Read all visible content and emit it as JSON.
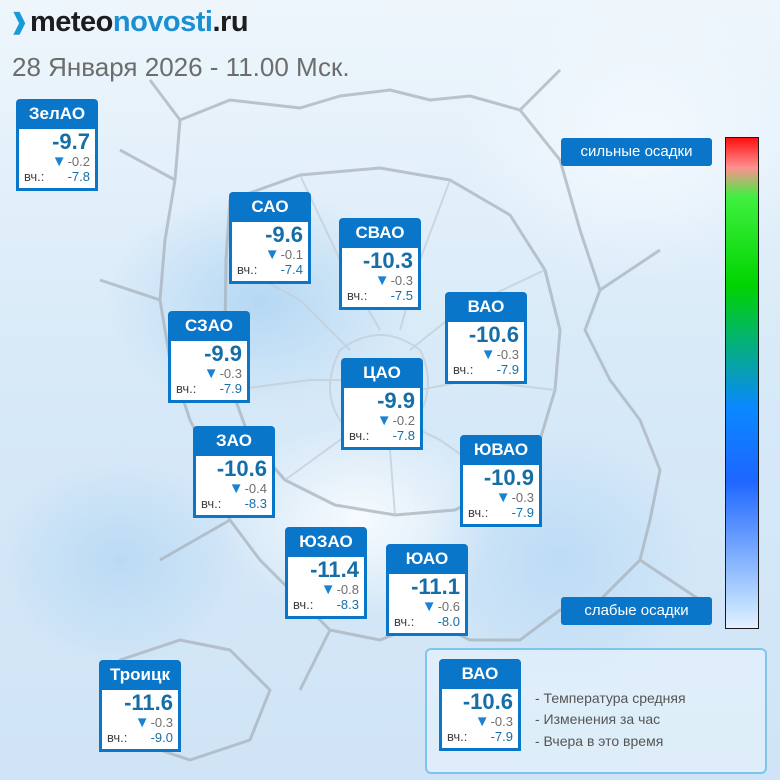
{
  "brand": {
    "part1": "meteo",
    "part2": "novosti",
    "part3": ".ru"
  },
  "date": "28 Января 2026 - 11.00 Мск.",
  "districts": {
    "zelao": {
      "name": "ЗелАО",
      "temp": "-9.7",
      "change": "-0.2",
      "yesterday": "-7.8"
    },
    "sao": {
      "name": "САО",
      "temp": "-9.6",
      "change": "-0.1",
      "yesterday": "-7.4"
    },
    "svao": {
      "name": "СВАО",
      "temp": "-10.3",
      "change": "-0.3",
      "yesterday": "-7.5"
    },
    "vao": {
      "name": "ВАО",
      "temp": "-10.6",
      "change": "-0.3",
      "yesterday": "-7.9"
    },
    "szao": {
      "name": "СЗАО",
      "temp": "-9.9",
      "change": "-0.3",
      "yesterday": "-7.9"
    },
    "tsao": {
      "name": "ЦАО",
      "temp": "-9.9",
      "change": "-0.2",
      "yesterday": "-7.8"
    },
    "zao": {
      "name": "ЗАО",
      "temp": "-10.6",
      "change": "-0.4",
      "yesterday": "-8.3"
    },
    "yuvao": {
      "name": "ЮВАО",
      "temp": "-10.9",
      "change": "-0.3",
      "yesterday": "-7.9"
    },
    "yuzao": {
      "name": "ЮЗАО",
      "temp": "-11.4",
      "change": "-0.8",
      "yesterday": "-8.3"
    },
    "yuao": {
      "name": "ЮАО",
      "temp": "-11.1",
      "change": "-0.6",
      "yesterday": "-8.0"
    },
    "troitsk": {
      "name": "Троицк",
      "temp": "-11.6",
      "change": "-0.3",
      "yesterday": "-9.0"
    }
  },
  "yesterday_prefix": "вч.:",
  "scale": {
    "top_label": "сильные осадки",
    "bottom_label": "слабые осадки"
  },
  "legend": {
    "sample": {
      "name": "ВАО",
      "temp": "-10.6",
      "change": "-0.3",
      "yesterday": "-7.9"
    },
    "line1": "- Температура средняя",
    "line2": "- Изменения за час",
    "line3": "- Вчера в это время"
  },
  "colors": {
    "card_blue": "#0a76c9",
    "temp_text": "#156ea8",
    "arrow": "#1b82d1",
    "scale_top": "#ff1010",
    "scale_bottom": "#e4f1ff"
  },
  "icons": {
    "brand_mark": "logo-chevron-icon",
    "change_arrow": "down-triangle-icon"
  }
}
